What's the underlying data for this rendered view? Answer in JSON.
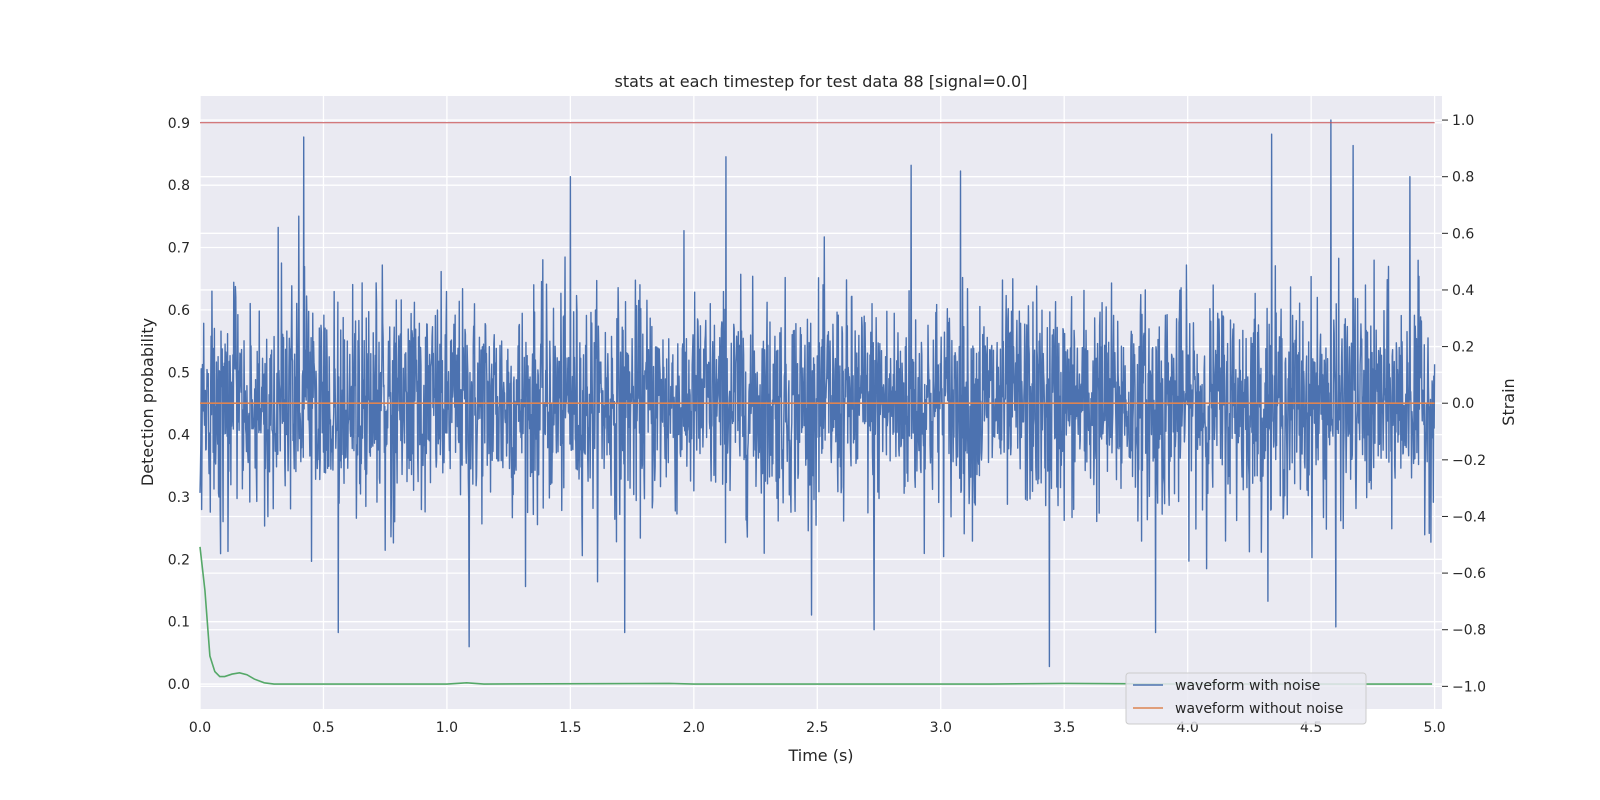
{
  "chart_data": {
    "type": "line",
    "title": "stats at each timestep for test data 88 [signal=0.0]",
    "xlabel": "Time (s)",
    "ylabel_left": "Detection probability",
    "ylabel_right": "Strain",
    "xlim": [
      0.0,
      5.03
    ],
    "ylim_left": [
      -0.04,
      0.943
    ],
    "ylim_right": [
      -1.08,
      1.085
    ],
    "x_ticks": [
      "0.0",
      "0.5",
      "1.0",
      "1.5",
      "2.0",
      "2.5",
      "3.0",
      "3.5",
      "4.0",
      "4.5",
      "5.0"
    ],
    "x_tick_values": [
      0,
      0.5,
      1.0,
      1.5,
      2.0,
      2.5,
      3.0,
      3.5,
      4.0,
      4.5,
      5.0
    ],
    "y_left_ticks": [
      "0.0",
      "0.1",
      "0.2",
      "0.3",
      "0.4",
      "0.5",
      "0.6",
      "0.7",
      "0.8",
      "0.9"
    ],
    "y_left_tick_values": [
      0,
      0.1,
      0.2,
      0.3,
      0.4,
      0.5,
      0.6,
      0.7,
      0.8,
      0.9
    ],
    "y_right_ticks": [
      "−1.0",
      "−0.8",
      "−0.6",
      "−0.4",
      "−0.2",
      "0.0",
      "0.2",
      "0.4",
      "0.6",
      "0.8",
      "1.0"
    ],
    "y_right_tick_values": [
      -1.0,
      -0.8,
      -0.6,
      -0.4,
      -0.2,
      0.0,
      0.2,
      0.4,
      0.6,
      0.8,
      1.0
    ],
    "grid": true,
    "legend_position": "lower-right",
    "series": [
      {
        "name": "waveform with noise",
        "axis": "right",
        "color": "#4c72b0",
        "x_range": [
          0.0,
          5.0
        ],
        "typical_amplitude": 0.3,
        "peaks": [
          {
            "x": 0.42,
            "y": 0.94
          },
          {
            "x": 2.13,
            "y": 0.87
          },
          {
            "x": 4.34,
            "y": 0.95
          },
          {
            "x": 4.58,
            "y": 1.0
          },
          {
            "x": 4.67,
            "y": 0.91
          },
          {
            "x": 2.88,
            "y": 0.84
          },
          {
            "x": 3.08,
            "y": 0.82
          },
          {
            "x": 1.5,
            "y": 0.8
          },
          {
            "x": 4.9,
            "y": 0.8
          }
        ],
        "troughs": [
          {
            "x": 3.44,
            "y": -0.93
          },
          {
            "x": 1.09,
            "y": -0.86
          },
          {
            "x": 4.6,
            "y": -0.79
          },
          {
            "x": 0.56,
            "y": -0.81
          },
          {
            "x": 1.72,
            "y": -0.81
          },
          {
            "x": 2.73,
            "y": -0.8
          },
          {
            "x": 3.87,
            "y": -0.81
          }
        ]
      },
      {
        "name": "waveform without noise",
        "axis": "right",
        "color": "#dd8452",
        "x": [
          0.0,
          5.0
        ],
        "y": [
          0.0,
          0.0
        ]
      },
      {
        "name": "",
        "axis": "left",
        "color": "#55a868",
        "x": [
          0.0,
          0.02,
          0.04,
          0.06,
          0.08,
          0.1,
          0.13,
          0.16,
          0.19,
          0.22,
          0.26,
          0.3,
          0.4,
          1.0,
          1.08,
          1.15,
          1.9,
          2.0,
          3.0,
          3.2,
          3.5,
          4.0,
          4.99
        ],
        "y": [
          0.22,
          0.15,
          0.045,
          0.02,
          0.012,
          0.012,
          0.016,
          0.018,
          0.015,
          0.008,
          0.002,
          0.0,
          0.0,
          0.0,
          0.002,
          0.0,
          0.001,
          0.0,
          0.0,
          0.0,
          0.001,
          0.0,
          0.0
        ]
      },
      {
        "name": "",
        "axis": "left",
        "color": "#c44e52",
        "x": [
          0.0,
          5.0
        ],
        "y": [
          0.9,
          0.9
        ]
      }
    ]
  }
}
